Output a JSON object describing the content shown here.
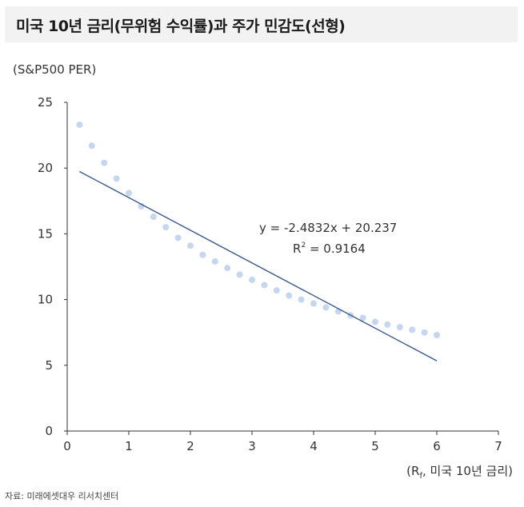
{
  "title": "미국 10년 금리(무위험 수익률)과 주가 민감도(선형)",
  "ylabel": "(S&P500 PER)",
  "xlabel": "(Rf, 미국 10년 금리)",
  "source": "자료: 미래에셋대우 리서치센터",
  "equation": "y = -2.4832x + 20.237",
  "r2_prefix": "R",
  "r2_sup": "2",
  "r2_value": " = 0.9164",
  "colors": {
    "points": "#c5d6ee",
    "trendline": "#3b5a8c",
    "axis": "#333333",
    "title_bg": "#f2f2f2"
  },
  "chart_data": {
    "type": "scatter",
    "x_ticks": [
      "0",
      "1",
      "2",
      "3",
      "4",
      "5",
      "6",
      "7"
    ],
    "y_ticks": [
      "0",
      "5",
      "10",
      "15",
      "20",
      "25"
    ],
    "xlim": [
      0,
      7
    ],
    "ylim": [
      0,
      25
    ],
    "grid": false,
    "series": [
      {
        "x": [
          0.2,
          0.4,
          0.6,
          0.8,
          1.0,
          1.2,
          1.4,
          1.6,
          1.8,
          2.0,
          2.2,
          2.4,
          2.6,
          2.8,
          3.0,
          3.2,
          3.4,
          3.6,
          3.8,
          4.0,
          4.2,
          4.4,
          4.6,
          4.8,
          5.0,
          5.2,
          5.4,
          5.6,
          5.8,
          6.0
        ],
        "y": [
          23.3,
          21.7,
          20.4,
          19.2,
          18.1,
          17.1,
          16.3,
          15.5,
          14.7,
          14.1,
          13.4,
          12.9,
          12.4,
          11.9,
          11.5,
          11.1,
          10.7,
          10.3,
          10.0,
          9.7,
          9.4,
          9.1,
          8.8,
          8.6,
          8.3,
          8.1,
          7.9,
          7.7,
          7.5,
          7.3
        ]
      }
    ],
    "trendline": {
      "slope": -2.4832,
      "intercept": 20.237,
      "x_range": [
        0.2,
        6.0
      ]
    }
  }
}
